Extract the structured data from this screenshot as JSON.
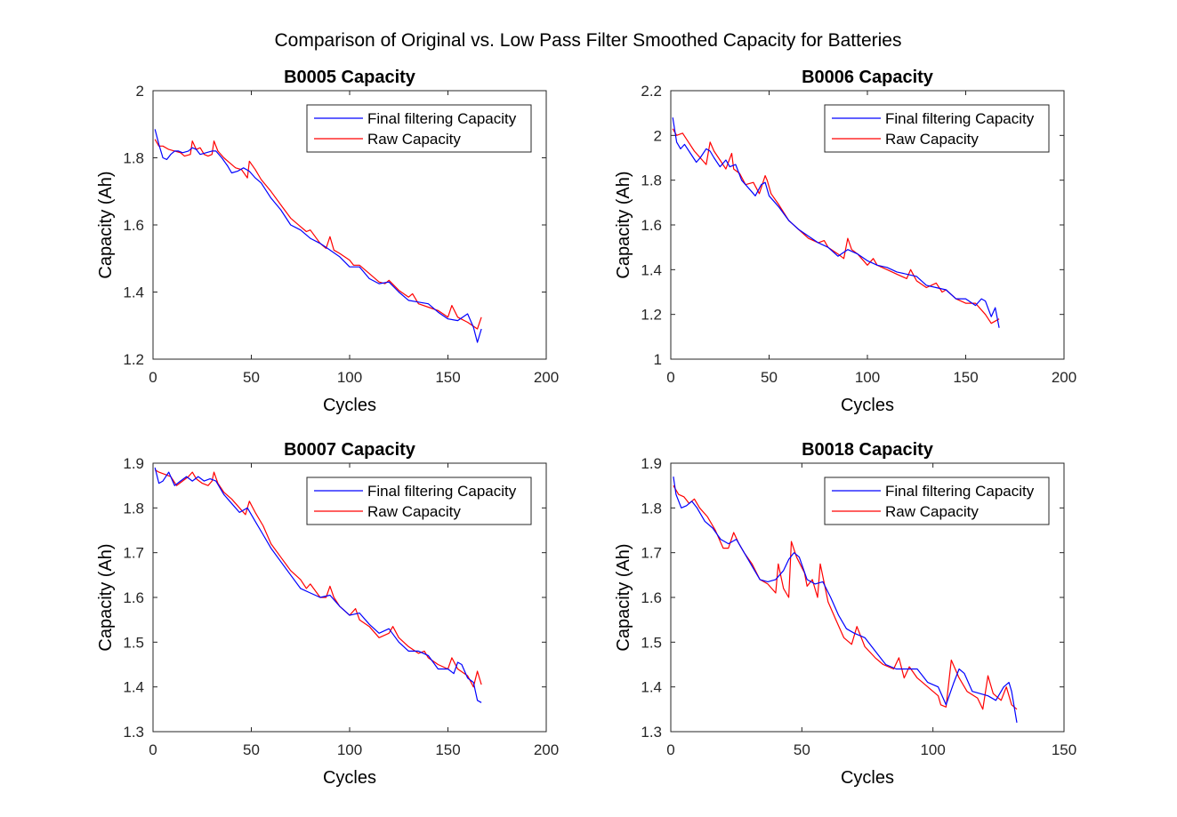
{
  "figure": {
    "title": "Comparison of Original vs. Low Pass Filter Smoothed Capacity for Batteries",
    "colors": {
      "filtered": "#0000ff",
      "raw": "#ff0000",
      "axes": "#262626"
    }
  },
  "chart_data": [
    {
      "type": "line",
      "title": "B0005 Capacity",
      "xlabel": "Cycles",
      "ylabel": "Capacity (Ah)",
      "xlim": [
        0,
        200
      ],
      "ylim": [
        1.2,
        2.0
      ],
      "xticks": [
        0,
        50,
        100,
        150,
        200
      ],
      "yticks": [
        1.2,
        1.4,
        1.6,
        1.8,
        2.0
      ],
      "xtick_labels": [
        "0",
        "50",
        "100",
        "150",
        "200"
      ],
      "ytick_labels": [
        "1.2",
        "1.4",
        "1.6",
        "1.8",
        "2"
      ],
      "legend_position": "top-right",
      "series": [
        {
          "name": "Final filtering Capacity",
          "color": "#0000ff",
          "x": [
            1,
            3,
            5,
            7,
            9,
            11,
            13,
            15,
            18,
            20,
            22,
            24,
            27,
            30,
            32,
            35,
            38,
            40,
            43,
            46,
            49,
            52,
            55,
            60,
            65,
            70,
            75,
            80,
            85,
            90,
            95,
            100,
            105,
            110,
            115,
            120,
            125,
            130,
            135,
            140,
            145,
            150,
            155,
            160,
            163,
            165,
            167
          ],
          "values": [
            1.885,
            1.84,
            1.8,
            1.795,
            1.81,
            1.82,
            1.82,
            1.815,
            1.82,
            1.83,
            1.825,
            1.81,
            1.815,
            1.82,
            1.82,
            1.8,
            1.775,
            1.755,
            1.76,
            1.77,
            1.76,
            1.74,
            1.725,
            1.68,
            1.645,
            1.6,
            1.585,
            1.56,
            1.545,
            1.525,
            1.505,
            1.475,
            1.475,
            1.44,
            1.425,
            1.43,
            1.4,
            1.375,
            1.37,
            1.365,
            1.34,
            1.32,
            1.315,
            1.335,
            1.295,
            1.25,
            1.29
          ]
        },
        {
          "name": "Raw Capacity",
          "color": "#ff0000",
          "x": [
            1,
            3,
            5,
            8,
            11,
            14,
            16,
            19,
            20,
            22,
            24,
            26,
            28,
            30,
            31,
            33,
            36,
            39,
            42,
            45,
            48,
            49,
            52,
            55,
            60,
            65,
            70,
            75,
            78,
            80,
            85,
            88,
            90,
            92,
            95,
            100,
            102,
            105,
            110,
            115,
            118,
            120,
            125,
            130,
            132,
            135,
            140,
            145,
            150,
            152,
            155,
            160,
            165,
            167
          ],
          "values": [
            1.855,
            1.835,
            1.835,
            1.825,
            1.82,
            1.815,
            1.805,
            1.81,
            1.85,
            1.825,
            1.83,
            1.81,
            1.805,
            1.81,
            1.85,
            1.82,
            1.8,
            1.785,
            1.77,
            1.765,
            1.74,
            1.79,
            1.765,
            1.735,
            1.7,
            1.66,
            1.62,
            1.595,
            1.58,
            1.585,
            1.545,
            1.53,
            1.565,
            1.525,
            1.515,
            1.495,
            1.48,
            1.48,
            1.455,
            1.43,
            1.425,
            1.435,
            1.405,
            1.385,
            1.395,
            1.365,
            1.355,
            1.345,
            1.325,
            1.36,
            1.325,
            1.31,
            1.29,
            1.325
          ]
        }
      ]
    },
    {
      "type": "line",
      "title": "B0006 Capacity",
      "xlabel": "Cycles",
      "ylabel": "Capacity (Ah)",
      "xlim": [
        0,
        200
      ],
      "ylim": [
        1.0,
        2.2
      ],
      "xticks": [
        0,
        50,
        100,
        150,
        200
      ],
      "yticks": [
        1.0,
        1.2,
        1.4,
        1.6,
        1.8,
        2.0,
        2.2
      ],
      "xtick_labels": [
        "0",
        "50",
        "100",
        "150",
        "200"
      ],
      "ytick_labels": [
        "1",
        "1.2",
        "1.4",
        "1.6",
        "1.8",
        "2",
        "2.2"
      ],
      "legend_position": "top-right",
      "series": [
        {
          "name": "Final filtering Capacity",
          "color": "#0000ff",
          "x": [
            1,
            3,
            5,
            7,
            10,
            13,
            15,
            18,
            20,
            22,
            25,
            28,
            30,
            33,
            36,
            40,
            43,
            46,
            48,
            50,
            53,
            55,
            60,
            65,
            70,
            75,
            80,
            85,
            90,
            95,
            100,
            105,
            110,
            115,
            120,
            125,
            130,
            135,
            140,
            145,
            150,
            155,
            158,
            160,
            163,
            165,
            167
          ],
          "values": [
            2.08,
            1.97,
            1.94,
            1.96,
            1.92,
            1.88,
            1.9,
            1.94,
            1.93,
            1.9,
            1.86,
            1.89,
            1.86,
            1.87,
            1.8,
            1.76,
            1.73,
            1.78,
            1.79,
            1.73,
            1.7,
            1.68,
            1.62,
            1.58,
            1.55,
            1.52,
            1.5,
            1.46,
            1.49,
            1.47,
            1.44,
            1.42,
            1.41,
            1.39,
            1.38,
            1.37,
            1.33,
            1.32,
            1.31,
            1.27,
            1.27,
            1.24,
            1.27,
            1.26,
            1.19,
            1.23,
            1.14
          ]
        },
        {
          "name": "Raw Capacity",
          "color": "#ff0000",
          "x": [
            1,
            3,
            6,
            9,
            12,
            15,
            18,
            20,
            22,
            25,
            28,
            31,
            32,
            35,
            38,
            42,
            45,
            48,
            49,
            51,
            55,
            60,
            65,
            70,
            75,
            78,
            80,
            85,
            88,
            90,
            92,
            95,
            100,
            103,
            105,
            110,
            115,
            120,
            122,
            125,
            130,
            135,
            138,
            140,
            145,
            150,
            155,
            160,
            163,
            165,
            167
          ],
          "values": [
            2.03,
            2.0,
            2.01,
            1.97,
            1.93,
            1.9,
            1.87,
            1.97,
            1.93,
            1.89,
            1.85,
            1.92,
            1.85,
            1.83,
            1.78,
            1.79,
            1.74,
            1.82,
            1.8,
            1.74,
            1.69,
            1.62,
            1.58,
            1.54,
            1.52,
            1.53,
            1.5,
            1.47,
            1.45,
            1.54,
            1.49,
            1.47,
            1.42,
            1.45,
            1.42,
            1.4,
            1.38,
            1.36,
            1.4,
            1.35,
            1.32,
            1.34,
            1.3,
            1.31,
            1.27,
            1.25,
            1.25,
            1.2,
            1.16,
            1.17,
            1.18
          ]
        }
      ]
    },
    {
      "type": "line",
      "title": "B0007 Capacity",
      "xlabel": "Cycles",
      "ylabel": "Capacity (Ah)",
      "xlim": [
        0,
        200
      ],
      "ylim": [
        1.3,
        1.9
      ],
      "xticks": [
        0,
        50,
        100,
        150,
        200
      ],
      "yticks": [
        1.3,
        1.4,
        1.5,
        1.6,
        1.7,
        1.8,
        1.9
      ],
      "xtick_labels": [
        "0",
        "50",
        "100",
        "150",
        "200"
      ],
      "ytick_labels": [
        "1.3",
        "1.4",
        "1.5",
        "1.6",
        "1.7",
        "1.8",
        "1.9"
      ],
      "legend_position": "top-right",
      "series": [
        {
          "name": "Final filtering Capacity",
          "color": "#0000ff",
          "x": [
            1,
            3,
            5,
            8,
            11,
            14,
            17,
            20,
            23,
            26,
            29,
            32,
            36,
            40,
            44,
            48,
            52,
            56,
            60,
            65,
            70,
            75,
            80,
            85,
            90,
            95,
            100,
            105,
            110,
            115,
            120,
            125,
            130,
            135,
            140,
            145,
            150,
            153,
            155,
            157,
            160,
            163,
            165,
            167
          ],
          "values": [
            1.89,
            1.855,
            1.86,
            1.88,
            1.85,
            1.86,
            1.87,
            1.86,
            1.87,
            1.86,
            1.865,
            1.86,
            1.83,
            1.81,
            1.79,
            1.8,
            1.77,
            1.74,
            1.71,
            1.68,
            1.65,
            1.62,
            1.61,
            1.6,
            1.605,
            1.58,
            1.56,
            1.565,
            1.54,
            1.52,
            1.53,
            1.5,
            1.48,
            1.48,
            1.47,
            1.44,
            1.44,
            1.43,
            1.455,
            1.45,
            1.42,
            1.41,
            1.37,
            1.365
          ]
        },
        {
          "name": "Raw Capacity",
          "color": "#ff0000",
          "x": [
            1,
            3,
            6,
            9,
            12,
            15,
            18,
            20,
            22,
            25,
            28,
            30,
            31,
            33,
            36,
            40,
            44,
            47,
            49,
            52,
            56,
            60,
            65,
            70,
            75,
            78,
            80,
            85,
            88,
            90,
            92,
            95,
            100,
            103,
            105,
            110,
            115,
            120,
            122,
            125,
            130,
            135,
            138,
            140,
            145,
            150,
            152,
            155,
            160,
            163,
            165,
            167
          ],
          "values": [
            1.885,
            1.88,
            1.875,
            1.87,
            1.85,
            1.86,
            1.87,
            1.88,
            1.865,
            1.855,
            1.85,
            1.86,
            1.88,
            1.855,
            1.835,
            1.82,
            1.8,
            1.785,
            1.815,
            1.79,
            1.76,
            1.72,
            1.69,
            1.66,
            1.64,
            1.62,
            1.63,
            1.6,
            1.6,
            1.625,
            1.6,
            1.58,
            1.56,
            1.575,
            1.55,
            1.535,
            1.51,
            1.52,
            1.535,
            1.51,
            1.49,
            1.475,
            1.48,
            1.465,
            1.45,
            1.44,
            1.465,
            1.44,
            1.425,
            1.4,
            1.435,
            1.405
          ]
        }
      ]
    },
    {
      "type": "line",
      "title": "B0018 Capacity",
      "xlabel": "Cycles",
      "ylabel": "Capacity (Ah)",
      "xlim": [
        0,
        150
      ],
      "ylim": [
        1.3,
        1.9
      ],
      "xticks": [
        0,
        50,
        100,
        150
      ],
      "yticks": [
        1.3,
        1.4,
        1.5,
        1.6,
        1.7,
        1.8,
        1.9
      ],
      "xtick_labels": [
        "0",
        "50",
        "100",
        "150"
      ],
      "ytick_labels": [
        "1.3",
        "1.4",
        "1.5",
        "1.6",
        "1.7",
        "1.8",
        "1.9"
      ],
      "legend_position": "top-right",
      "series": [
        {
          "name": "Final filtering Capacity",
          "color": "#0000ff",
          "x": [
            1,
            2,
            4,
            6,
            8,
            10,
            13,
            16,
            19,
            22,
            25,
            28,
            31,
            34,
            37,
            40,
            43,
            45,
            47,
            49,
            52,
            55,
            58,
            61,
            64,
            67,
            70,
            74,
            78,
            82,
            86,
            90,
            94,
            98,
            102,
            105,
            108,
            110,
            112,
            115,
            118,
            121,
            124,
            127,
            129,
            130,
            132
          ],
          "values": [
            1.87,
            1.83,
            1.8,
            1.805,
            1.815,
            1.8,
            1.77,
            1.755,
            1.73,
            1.72,
            1.73,
            1.7,
            1.67,
            1.64,
            1.635,
            1.64,
            1.66,
            1.685,
            1.7,
            1.69,
            1.64,
            1.63,
            1.635,
            1.6,
            1.56,
            1.53,
            1.52,
            1.51,
            1.48,
            1.45,
            1.44,
            1.44,
            1.44,
            1.41,
            1.4,
            1.36,
            1.41,
            1.44,
            1.43,
            1.39,
            1.385,
            1.38,
            1.37,
            1.4,
            1.41,
            1.39,
            1.32
          ]
        },
        {
          "name": "Raw Capacity",
          "color": "#ff0000",
          "x": [
            1,
            3,
            5,
            7,
            9,
            11,
            14,
            17,
            20,
            22,
            24,
            26,
            28,
            31,
            34,
            37,
            40,
            41,
            43,
            45,
            46,
            48,
            51,
            52,
            54,
            56,
            57,
            60,
            63,
            66,
            69,
            71,
            74,
            78,
            81,
            85,
            87,
            89,
            91,
            94,
            97,
            100,
            102,
            103,
            105,
            107,
            110,
            113,
            117,
            119,
            121,
            123,
            126,
            128,
            130,
            132
          ],
          "values": [
            1.85,
            1.83,
            1.825,
            1.81,
            1.82,
            1.8,
            1.78,
            1.75,
            1.71,
            1.71,
            1.745,
            1.72,
            1.7,
            1.675,
            1.64,
            1.63,
            1.61,
            1.675,
            1.62,
            1.6,
            1.725,
            1.69,
            1.655,
            1.625,
            1.64,
            1.6,
            1.675,
            1.59,
            1.55,
            1.51,
            1.495,
            1.535,
            1.49,
            1.465,
            1.45,
            1.44,
            1.465,
            1.42,
            1.445,
            1.42,
            1.405,
            1.39,
            1.38,
            1.36,
            1.355,
            1.46,
            1.42,
            1.39,
            1.375,
            1.35,
            1.425,
            1.385,
            1.37,
            1.4,
            1.36,
            1.35
          ]
        }
      ]
    }
  ]
}
